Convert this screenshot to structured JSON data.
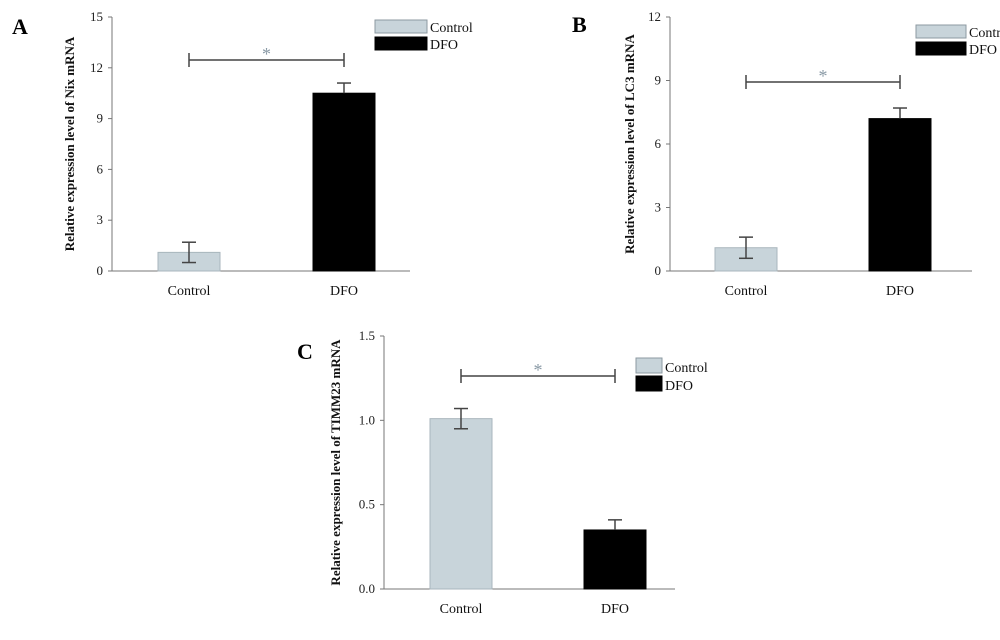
{
  "chart_data": [
    {
      "type": "bar",
      "panel": "A",
      "categories": [
        "Control",
        "DFO"
      ],
      "values": [
        1.1,
        10.5
      ],
      "errors": [
        0.6,
        0.6
      ],
      "ylabel": "Relative expression level of Nix mRNA",
      "ylim": [
        0,
        15
      ],
      "yticks": [
        "0",
        "3",
        "6",
        "9",
        "12",
        "15"
      ],
      "legend": [
        "Control",
        "DFO"
      ],
      "legend_position": "top-right",
      "significance": "*",
      "colors": [
        "#c8d4da",
        "#000000"
      ]
    },
    {
      "type": "bar",
      "panel": "B",
      "categories": [
        "Control",
        "DFO"
      ],
      "values": [
        1.1,
        7.2
      ],
      "errors": [
        0.5,
        0.5
      ],
      "ylabel": "Relative expression level of LC3 mRNA",
      "ylim": [
        0,
        12
      ],
      "yticks": [
        "0",
        "3",
        "6",
        "9",
        "12"
      ],
      "legend": [
        "Control",
        "DFO"
      ],
      "legend_position": "top-right",
      "significance": "*",
      "colors": [
        "#c8d4da",
        "#000000"
      ]
    },
    {
      "type": "bar",
      "panel": "C",
      "categories": [
        "Control",
        "DFO"
      ],
      "values": [
        1.01,
        0.35
      ],
      "errors": [
        0.06,
        0.06
      ],
      "ylabel": "Relative expression level of TIMM23 mRNA",
      "ylim": [
        0,
        1.5
      ],
      "yticks": [
        "0.0",
        "0.5",
        "1.0",
        "1.5"
      ],
      "legend": [
        "Control",
        "DFO"
      ],
      "legend_position": "top-right",
      "significance": "*",
      "colors": [
        "#c8d4da",
        "#000000"
      ]
    }
  ]
}
